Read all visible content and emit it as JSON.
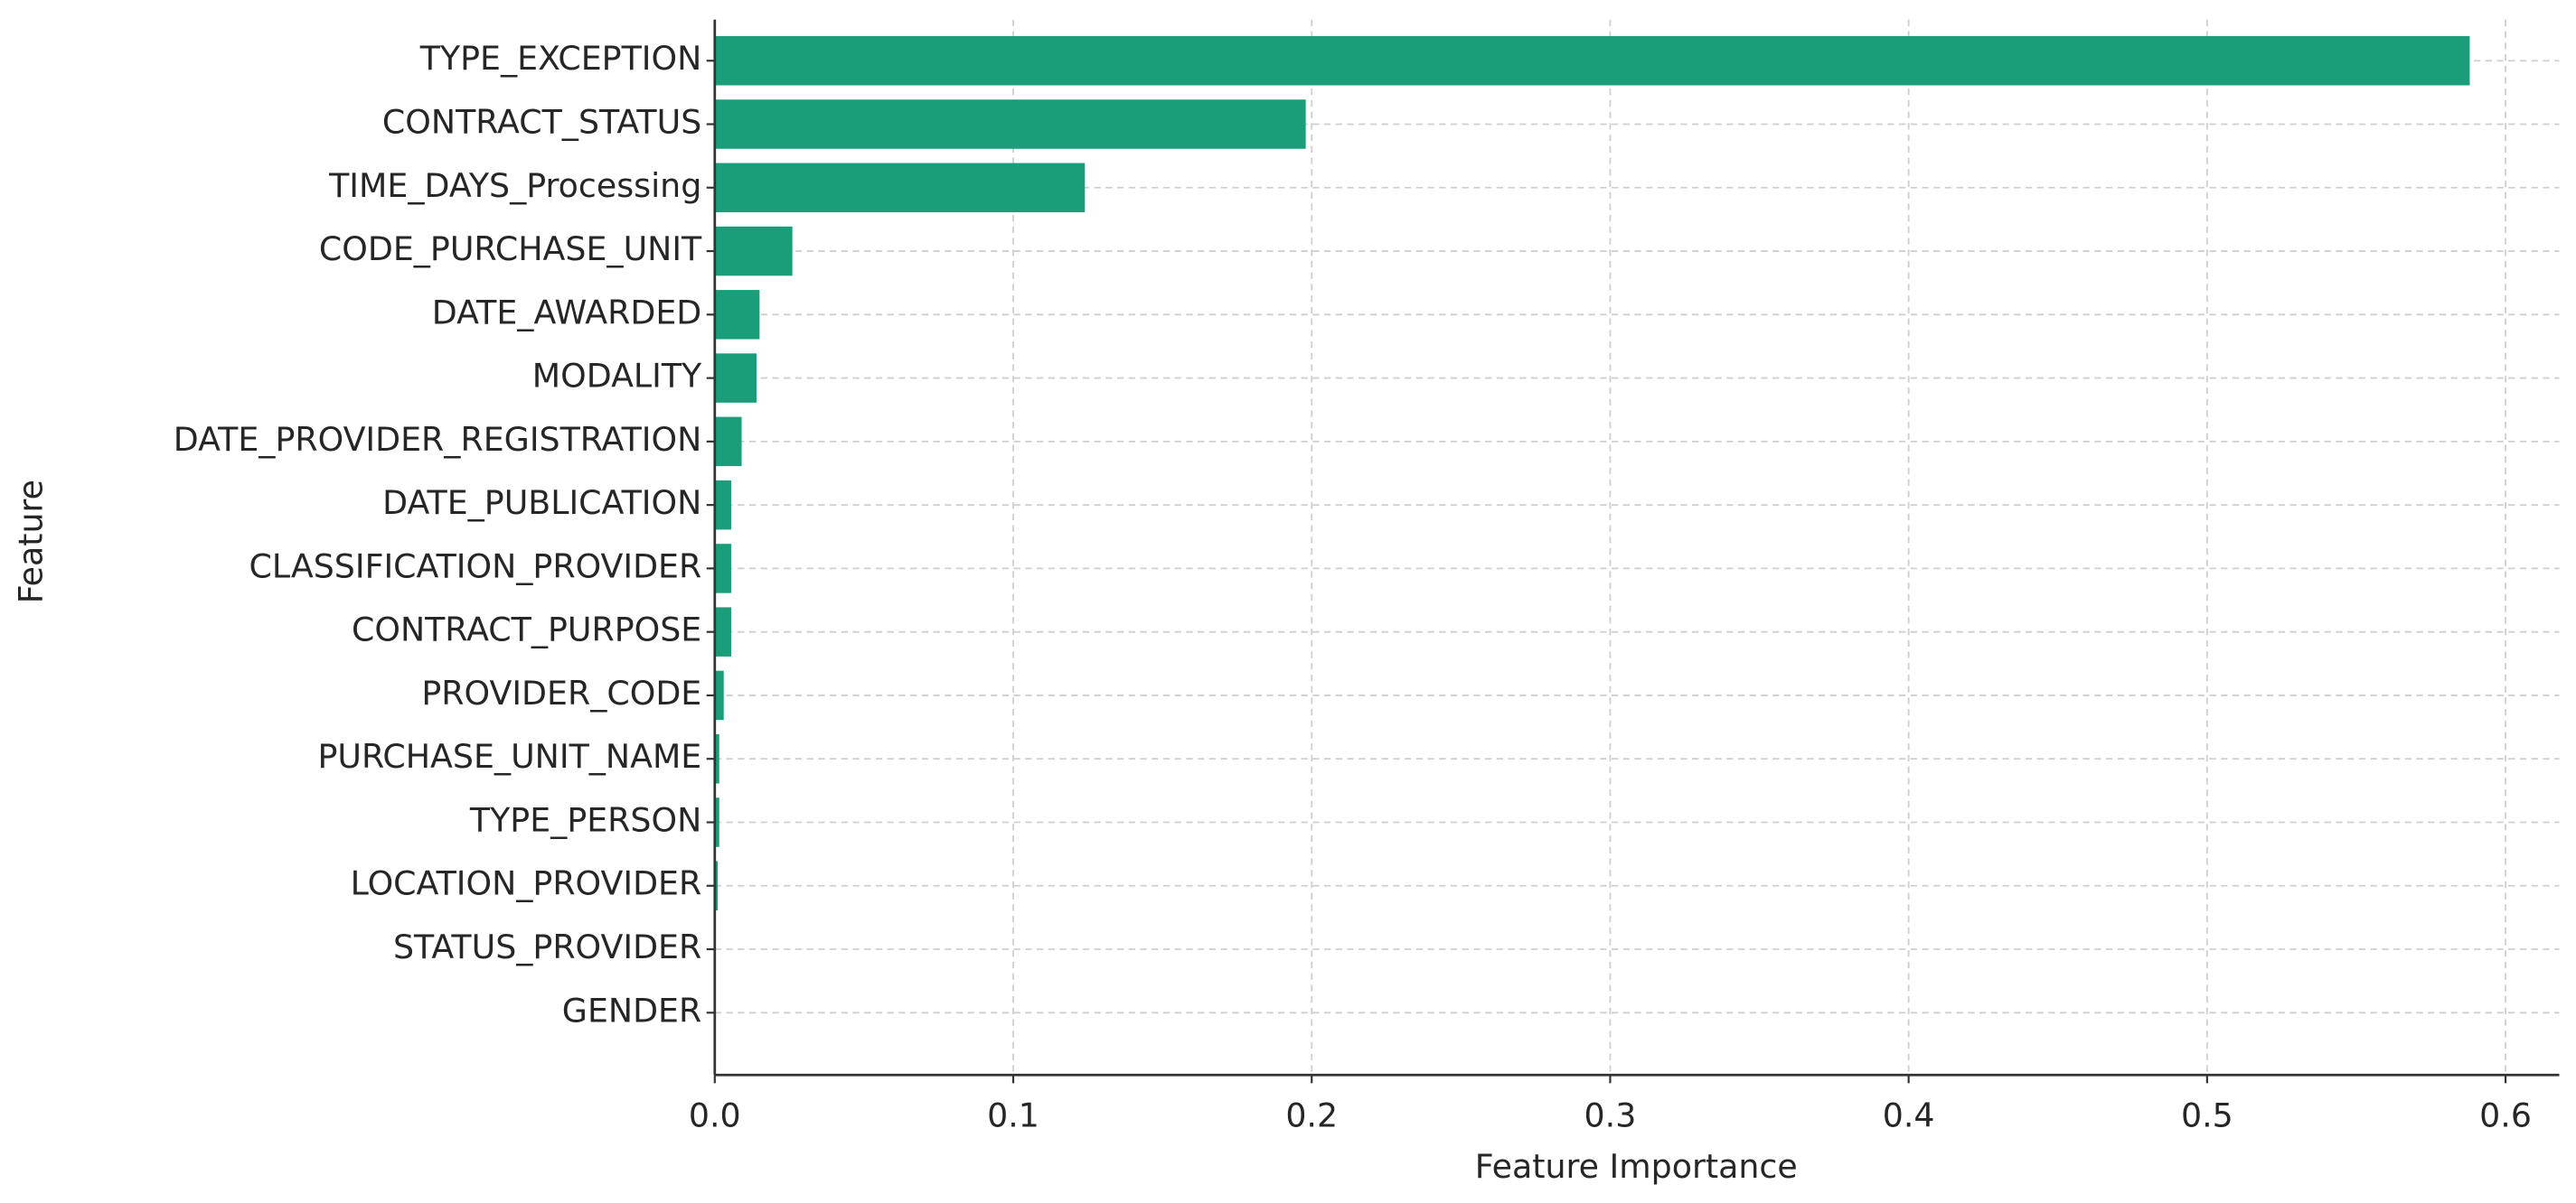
{
  "chart_data": {
    "type": "barh",
    "xlabel": "Feature Importance",
    "ylabel": "Feature",
    "categories": [
      "TYPE_EXCEPTION",
      "CONTRACT_STATUS",
      "TIME_DAYS_Processing",
      "CODE_PURCHASE_UNIT",
      "DATE_AWARDED",
      "MODALITY",
      "DATE_PROVIDER_REGISTRATION",
      "DATE_PUBLICATION",
      "CLASSIFICATION_PROVIDER",
      "CONTRACT_PURPOSE",
      "PROVIDER_CODE",
      "PURCHASE_UNIT_NAME",
      "TYPE_PERSON",
      "LOCATION_PROVIDER",
      "STATUS_PROVIDER",
      "GENDER"
    ],
    "values": [
      0.588,
      0.198,
      0.124,
      0.026,
      0.015,
      0.014,
      0.009,
      0.0055,
      0.0055,
      0.0055,
      0.003,
      0.0015,
      0.0015,
      0.001,
      0.0003,
      0
    ],
    "color": "#1a9e7a",
    "xlim": [
      0,
      0.618
    ],
    "xticks": [
      {
        "value": 0,
        "label": "0.0"
      },
      0.1,
      0.2,
      0.3,
      0.4,
      0.5,
      0.6
    ],
    "grid": true
  }
}
